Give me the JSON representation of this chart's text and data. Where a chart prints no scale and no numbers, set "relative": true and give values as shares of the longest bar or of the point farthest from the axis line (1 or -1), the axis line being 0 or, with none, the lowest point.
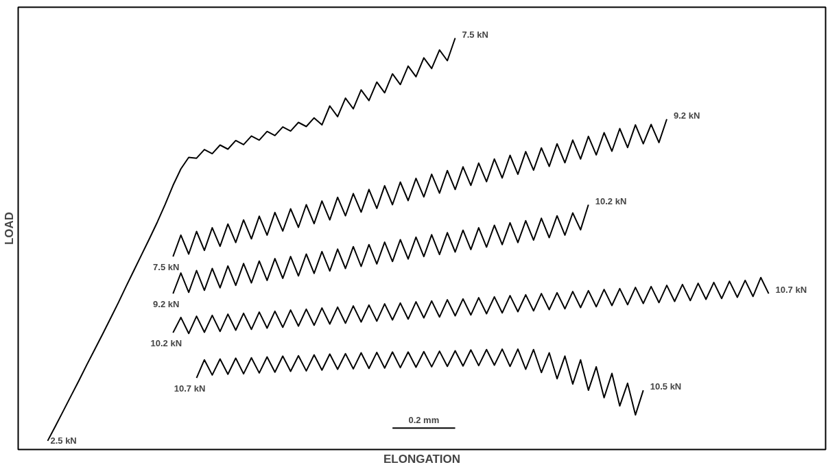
{
  "chart_data": {
    "type": "line",
    "relative": true,
    "xlabel": "ELONGATION",
    "ylabel": "LOAD",
    "marker": "none",
    "line_style": "solid",
    "categories": [
      null,
      null,
      null,
      null,
      null,
      null,
      null,
      null,
      null,
      null,
      null,
      null,
      null,
      null,
      null,
      null,
      null,
      null,
      null,
      null,
      null,
      null,
      null,
      null,
      null,
      null,
      null,
      null,
      null,
      null,
      null,
      null,
      null,
      null,
      null,
      null,
      null,
      null,
      null,
      null,
      null,
      null,
      null,
      null,
      null,
      null,
      null,
      null,
      null,
      null,
      null,
      null,
      null,
      null,
      null,
      null,
      null,
      null,
      null,
      null,
      null,
      null,
      null,
      null,
      null,
      null,
      null,
      null,
      null,
      null,
      null,
      null,
      null,
      null,
      null,
      null,
      null,
      null,
      null,
      null,
      null,
      null,
      null,
      null,
      null,
      null,
      null,
      null,
      null,
      null,
      null,
      null,
      null,
      null
    ],
    "series": [
      {
        "color": "#000000",
        "values": [
          0.021,
          0.057,
          0.094,
          0.131,
          0.168,
          0.206,
          0.243,
          0.28,
          0.318,
          0.356,
          0.396,
          0.435,
          0.474,
          0.513,
          0.553,
          0.596,
          0.642,
          0.682,
          0.71,
          0.708,
          0.729,
          0.719,
          0.74,
          0.73,
          0.751,
          0.741,
          0.762,
          0.752,
          0.773,
          0.763,
          0.784,
          0.774,
          0.795,
          0.785,
          0.806,
          0.789,
          0.835,
          0.809,
          0.854,
          0.828,
          0.874,
          0.848,
          0.893,
          0.867,
          0.913,
          0.887,
          0.932,
          0.906,
          0.952,
          0.926,
          0.971,
          0.945,
          1.0,
          null,
          null,
          null,
          null,
          null,
          null,
          null,
          null,
          null,
          null,
          null,
          null,
          null,
          null,
          null,
          null,
          null,
          null,
          null,
          null,
          null,
          null,
          null,
          null,
          null,
          null,
          null,
          null,
          null,
          null,
          null,
          null,
          null,
          null,
          null,
          null,
          null,
          null,
          null,
          null,
          null
        ]
      },
      {
        "color": "#000000",
        "values": [
          null,
          null,
          null,
          null,
          null,
          null,
          null,
          null,
          null,
          null,
          null,
          null,
          null,
          null,
          null,
          null,
          0.469,
          0.521,
          0.475,
          0.53,
          0.484,
          0.539,
          0.494,
          0.548,
          0.503,
          0.558,
          0.512,
          0.567,
          0.521,
          0.576,
          0.531,
          0.585,
          0.54,
          0.595,
          0.549,
          0.604,
          0.558,
          0.613,
          0.568,
          0.622,
          0.577,
          0.632,
          0.586,
          0.641,
          0.595,
          0.65,
          0.605,
          0.659,
          0.614,
          0.669,
          0.623,
          0.678,
          0.632,
          0.687,
          0.642,
          0.696,
          0.651,
          0.706,
          0.66,
          0.715,
          0.669,
          0.724,
          0.679,
          0.733,
          0.688,
          0.743,
          0.697,
          0.752,
          0.706,
          0.761,
          0.716,
          0.77,
          0.725,
          0.78,
          0.734,
          0.789,
          0.743,
          0.79,
          0.746,
          0.803,
          null,
          null,
          null,
          null,
          null,
          null,
          null,
          null,
          null,
          null,
          null,
          null,
          null,
          null
        ]
      },
      {
        "color": "#000000",
        "values": [
          null,
          null,
          null,
          null,
          null,
          null,
          null,
          null,
          null,
          null,
          null,
          null,
          null,
          null,
          null,
          null,
          0.379,
          0.429,
          0.382,
          0.435,
          0.387,
          0.44,
          0.393,
          0.446,
          0.399,
          0.452,
          0.405,
          0.458,
          0.411,
          0.464,
          0.416,
          0.469,
          0.422,
          0.475,
          0.428,
          0.481,
          0.434,
          0.487,
          0.44,
          0.493,
          0.445,
          0.498,
          0.451,
          0.504,
          0.457,
          0.51,
          0.463,
          0.516,
          0.469,
          0.522,
          0.474,
          0.527,
          0.48,
          0.533,
          0.486,
          0.539,
          0.492,
          0.545,
          0.498,
          0.551,
          0.503,
          0.556,
          0.509,
          0.562,
          0.515,
          0.568,
          0.521,
          0.575,
          0.534,
          0.595,
          null,
          null,
          null,
          null,
          null,
          null,
          null,
          null,
          null,
          null,
          null,
          null,
          null,
          null,
          null,
          null,
          null,
          null,
          null,
          null,
          null,
          null,
          null,
          null
        ]
      },
      {
        "color": "#000000",
        "values": [
          null,
          null,
          null,
          null,
          null,
          null,
          null,
          null,
          null,
          null,
          null,
          null,
          null,
          null,
          null,
          null,
          0.284,
          0.321,
          0.282,
          0.324,
          0.285,
          0.326,
          0.287,
          0.329,
          0.29,
          0.331,
          0.292,
          0.334,
          0.295,
          0.336,
          0.297,
          0.339,
          0.3,
          0.341,
          0.302,
          0.344,
          0.305,
          0.346,
          0.307,
          0.349,
          0.31,
          0.351,
          0.312,
          0.354,
          0.315,
          0.356,
          0.317,
          0.359,
          0.32,
          0.361,
          0.322,
          0.364,
          0.325,
          0.366,
          0.327,
          0.369,
          0.33,
          0.371,
          0.332,
          0.374,
          0.335,
          0.376,
          0.337,
          0.379,
          0.34,
          0.381,
          0.342,
          0.384,
          0.345,
          0.386,
          0.347,
          0.389,
          0.35,
          0.391,
          0.352,
          0.394,
          0.355,
          0.396,
          0.357,
          0.399,
          0.36,
          0.401,
          0.362,
          0.404,
          0.365,
          0.406,
          0.367,
          0.409,
          0.37,
          0.411,
          0.372,
          0.418,
          0.379,
          null
        ]
      },
      {
        "color": "#000000",
        "values": [
          null,
          null,
          null,
          null,
          null,
          null,
          null,
          null,
          null,
          null,
          null,
          null,
          null,
          null,
          null,
          null,
          null,
          null,
          null,
          0.174,
          0.218,
          0.181,
          0.22,
          0.183,
          0.222,
          0.184,
          0.223,
          0.186,
          0.225,
          0.188,
          0.227,
          0.19,
          0.228,
          0.191,
          0.23,
          0.193,
          0.232,
          0.195,
          0.233,
          0.196,
          0.235,
          0.197,
          0.236,
          0.198,
          0.237,
          0.199,
          0.237,
          0.2,
          0.238,
          0.201,
          0.239,
          0.202,
          0.24,
          0.203,
          0.242,
          0.204,
          0.243,
          0.205,
          0.244,
          0.202,
          0.244,
          0.195,
          0.243,
          0.187,
          0.235,
          0.172,
          0.227,
          0.159,
          0.218,
          0.144,
          0.201,
          0.126,
          0.185,
          0.106,
          0.161,
          0.084,
          0.144,
          null,
          null,
          null,
          null,
          null,
          null,
          null,
          null,
          null,
          null,
          null,
          null,
          null,
          null,
          null,
          null,
          null
        ]
      },
      {
        "color": "#000000",
        "values": [
          null,
          null,
          null,
          null,
          null,
          null,
          null,
          null,
          null,
          null,
          null,
          null,
          null,
          null,
          null,
          null,
          null,
          null,
          null,
          null,
          null,
          null,
          null,
          null,
          null,
          null,
          null,
          null,
          null,
          null,
          null,
          null,
          null,
          null,
          null,
          null,
          null,
          null,
          null,
          null,
          null,
          null,
          null,
          null,
          0.052,
          0.052,
          0.052,
          0.052,
          0.052,
          0.052,
          0.052,
          0.052,
          0.052,
          null,
          null,
          null,
          null,
          null,
          null,
          null,
          null,
          null,
          null,
          null,
          null,
          null,
          null,
          null,
          null,
          null,
          null,
          null,
          null,
          null,
          null,
          null,
          null,
          null,
          null,
          null,
          null,
          null,
          null,
          null,
          null,
          null,
          null,
          null,
          null,
          null,
          null,
          null,
          null,
          null
        ]
      }
    ],
    "annotations": [
      "2.5 kN",
      "7.5 kN",
      "7.5 kN",
      "9.2 kN",
      "9.2 kN",
      "10.2 kN",
      "10.2 kN",
      "10.7 kN",
      "10.7 kN",
      "10.5 kN",
      "0.2 mm"
    ]
  }
}
